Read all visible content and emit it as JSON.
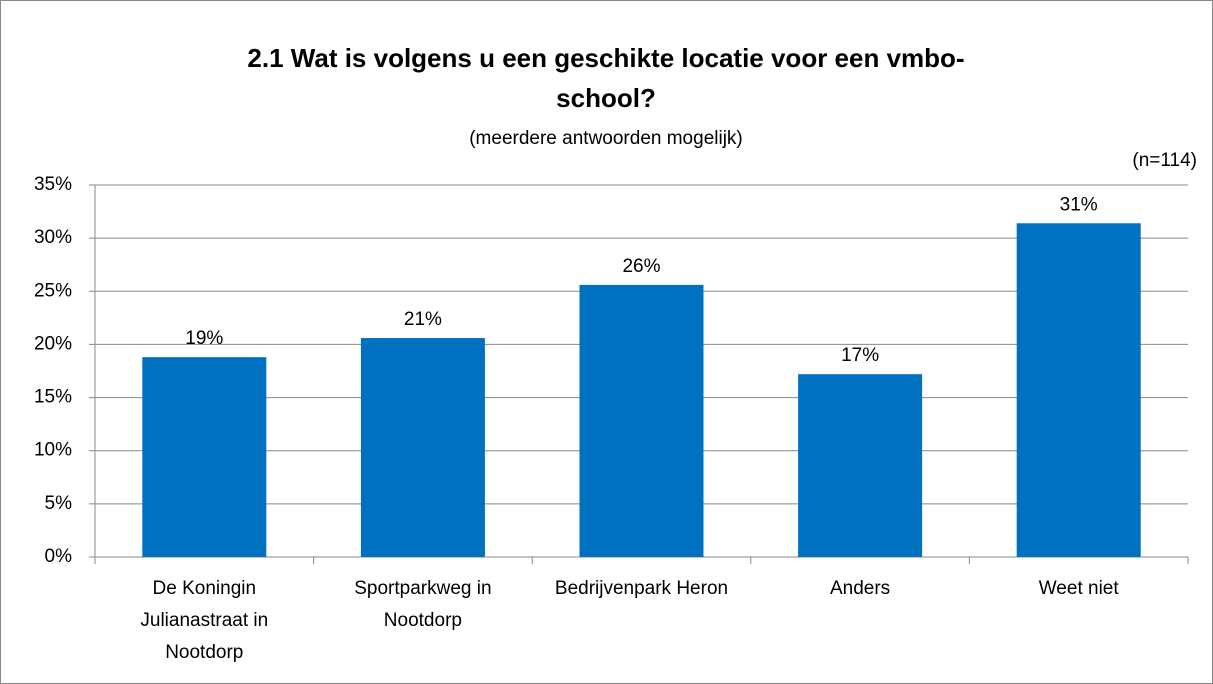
{
  "chart_data": {
    "type": "bar",
    "title": "2.1 Wat is volgens u een geschikte locatie voor een vmbo-school?",
    "subtitle": "(meerdere antwoorden mogelijk)",
    "annotation": "(n=114)",
    "categories": [
      "De Koningin Julianastraat in Nootdorp",
      "Sportparkweg in Nootdorp",
      "Bedrijvenpark Heron",
      "Anders",
      "Weet niet"
    ],
    "values": [
      18.8,
      20.6,
      25.6,
      17.2,
      31.4
    ],
    "value_labels": [
      "19%",
      "21%",
      "26%",
      "17%",
      "31%"
    ],
    "color": "#0070c0",
    "ylim": [
      0,
      35
    ],
    "yticks": [
      {
        "value": 0,
        "label": "0%"
      },
      {
        "value": 5,
        "label": "5%"
      },
      {
        "value": 10,
        "label": "10%"
      },
      {
        "value": 15,
        "label": "15%"
      },
      {
        "value": 20,
        "label": "20%"
      },
      {
        "value": 25,
        "label": "25%"
      },
      {
        "value": 30,
        "label": "30%"
      },
      {
        "value": 35,
        "label": "35%"
      }
    ],
    "grid": true
  }
}
